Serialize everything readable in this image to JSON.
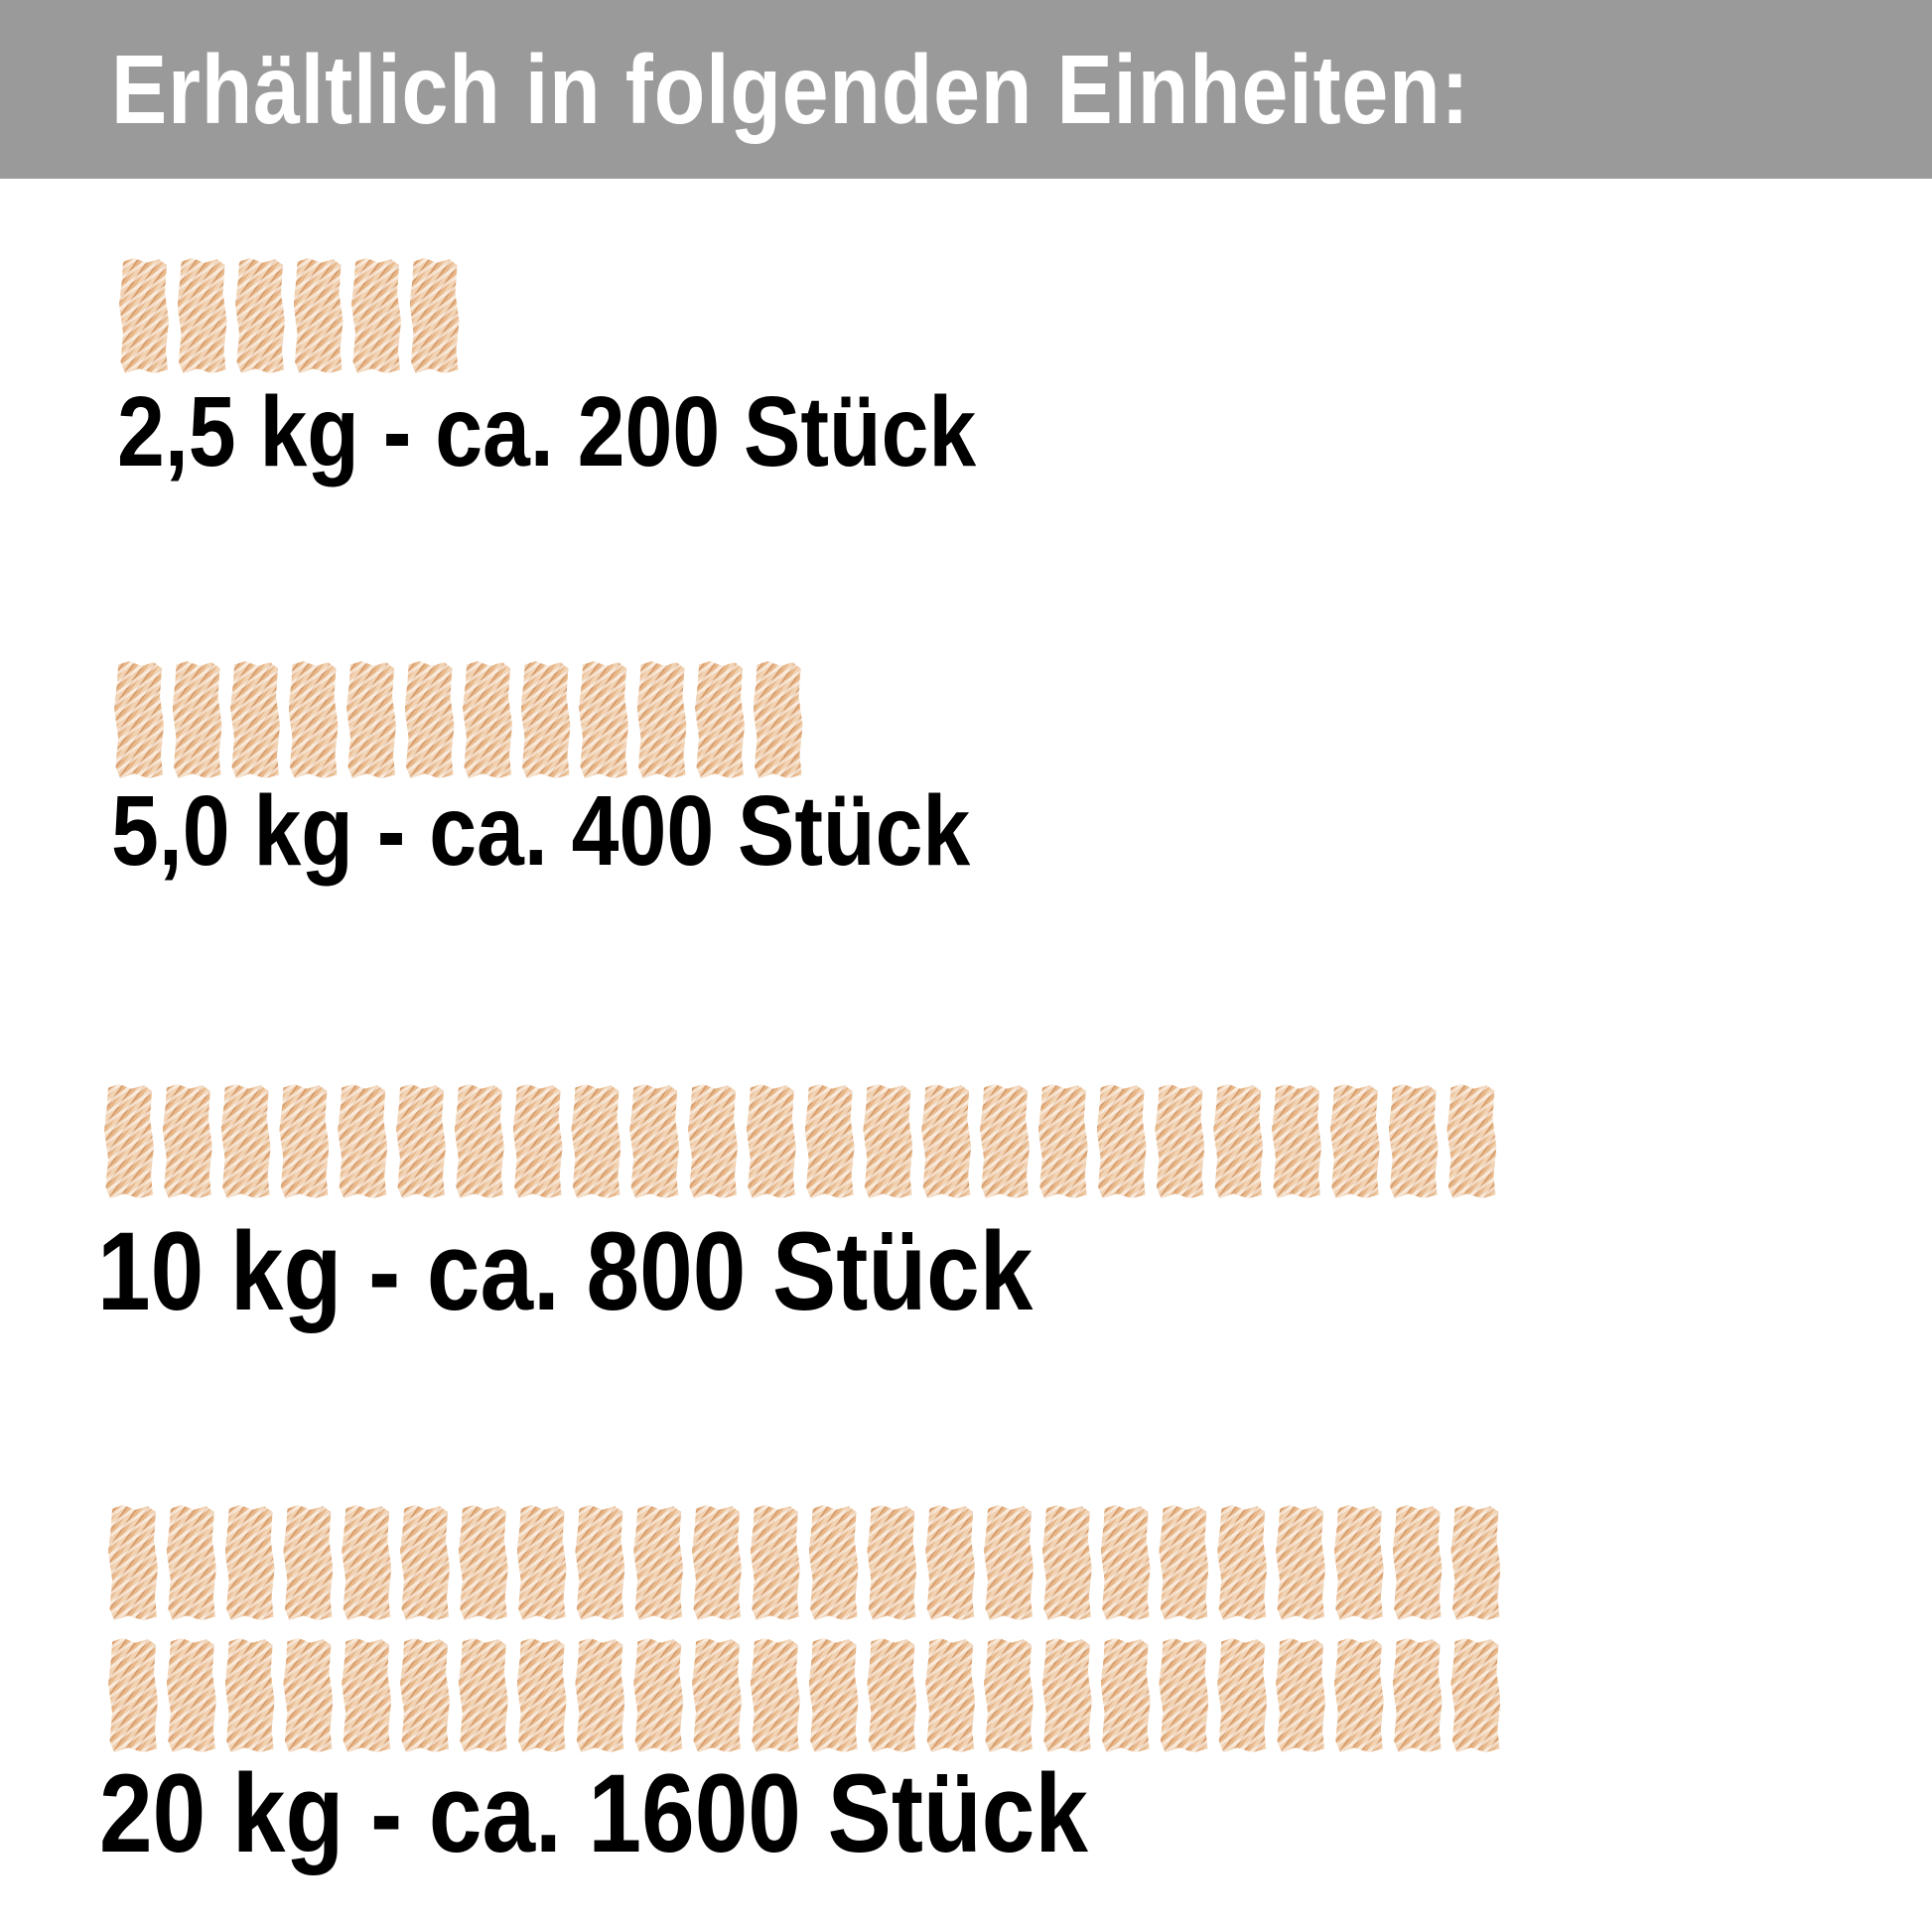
{
  "header": {
    "title": "Erhältlich in folgenden Einheiten:"
  },
  "colors": {
    "header_bg": "#9a9a9a",
    "firelighter": "#e8b88a"
  },
  "icon": "wood-wool-firelighter-icon",
  "units": [
    {
      "label": "2,5 kg - ca. 200 Stück",
      "icon_rows": [
        6
      ]
    },
    {
      "label": "5,0 kg - ca. 400 Stück",
      "icon_rows": [
        12
      ]
    },
    {
      "label": "10 kg - ca. 800 Stück",
      "icon_rows": [
        24
      ]
    },
    {
      "label": "20 kg - ca. 1600 Stück",
      "icon_rows": [
        24,
        24
      ]
    }
  ]
}
